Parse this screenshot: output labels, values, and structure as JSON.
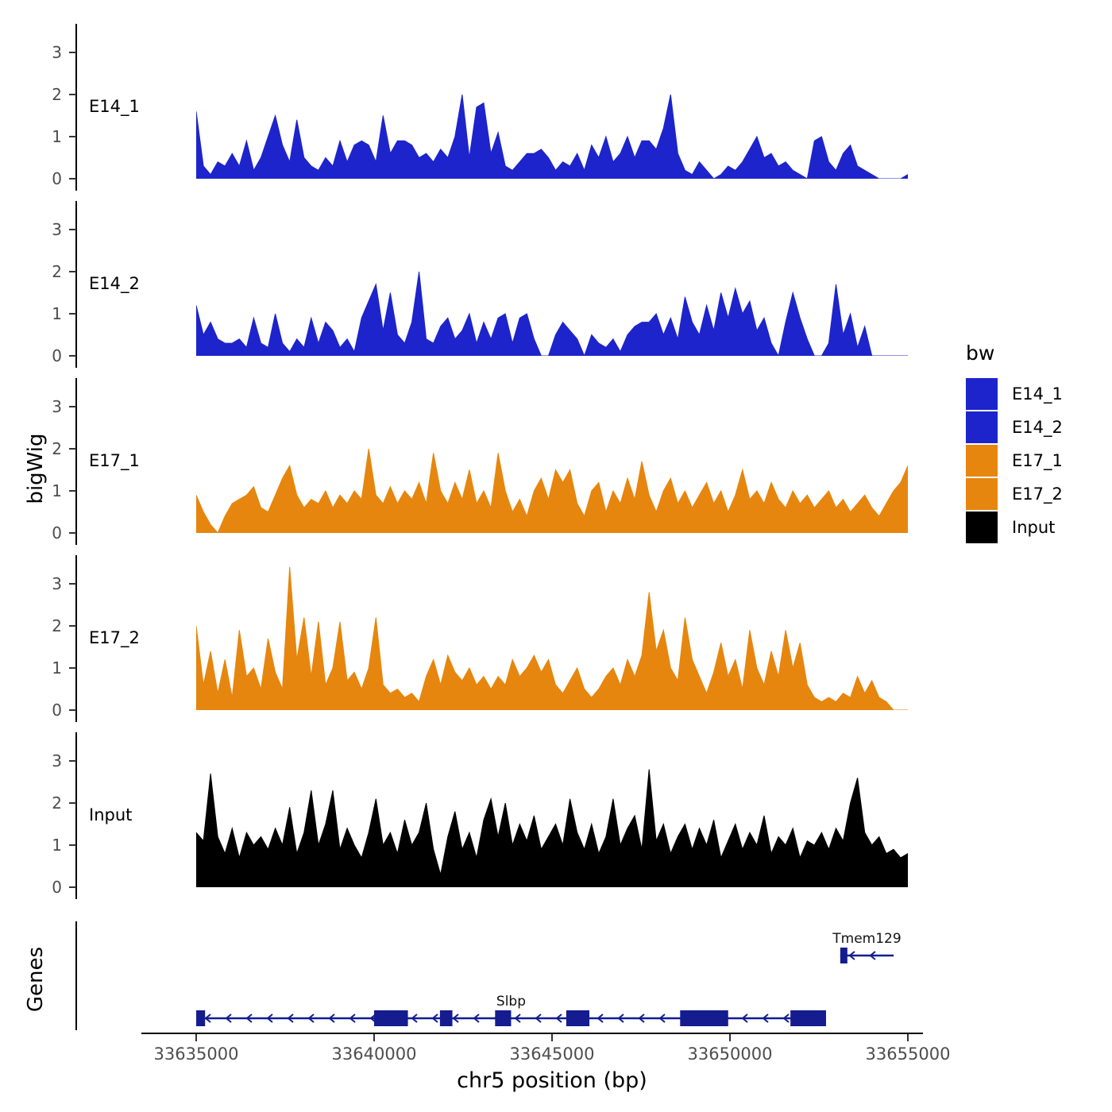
{
  "chart_data": {
    "type": "area",
    "title": "",
    "xlabel": "chr5 position (bp)",
    "ylabel": "bigWig",
    "genes_label": "Genes",
    "x_start": 33635000,
    "x_step": 200,
    "x_range": [
      33635000,
      33654800
    ],
    "x_ticks": [
      33635000,
      33640000,
      33645000,
      33650000,
      33655000
    ],
    "y_ticks": [
      0,
      1,
      2,
      3
    ],
    "ylim": [
      0,
      3.5
    ],
    "grid": false,
    "legend": {
      "title": "bw",
      "position": "right",
      "entries": [
        {
          "label": "E14_1",
          "color": "#1d24cb"
        },
        {
          "label": "E14_2",
          "color": "#1d24cb"
        },
        {
          "label": "E17_1",
          "color": "#e6860f"
        },
        {
          "label": "E17_2",
          "color": "#e6860f"
        },
        {
          "label": "Input",
          "color": "#000000"
        }
      ]
    },
    "tracks": [
      {
        "name": "E14_1",
        "color": "#1d24cb",
        "values": [
          1.6,
          0.3,
          0.1,
          0.4,
          0.3,
          0.6,
          0.3,
          0.9,
          0.2,
          0.5,
          1.0,
          1.5,
          0.8,
          0.4,
          1.4,
          0.5,
          0.3,
          0.2,
          0.5,
          0.3,
          0.9,
          0.4,
          0.8,
          0.9,
          0.8,
          0.4,
          1.5,
          0.6,
          0.9,
          0.9,
          0.8,
          0.5,
          0.6,
          0.4,
          0.7,
          0.5,
          1.0,
          2.0,
          0.5,
          1.7,
          1.8,
          0.6,
          1.1,
          0.3,
          0.2,
          0.4,
          0.6,
          0.6,
          0.7,
          0.5,
          0.2,
          0.4,
          0.3,
          0.6,
          0.2,
          0.8,
          0.5,
          1.0,
          0.4,
          0.6,
          1.0,
          0.5,
          0.9,
          0.9,
          0.7,
          1.2,
          2.0,
          0.6,
          0.2,
          0.1,
          0.4,
          0.2,
          0.0,
          0.1,
          0.3,
          0.2,
          0.4,
          0.7,
          1.0,
          0.5,
          0.6,
          0.3,
          0.4,
          0.2,
          0.1,
          0.0,
          0.9,
          1.0,
          0.4,
          0.2,
          0.6,
          0.8,
          0.3,
          0.2,
          0.1,
          0.0,
          0.0,
          0.0,
          0.0,
          0.1
        ]
      },
      {
        "name": "E14_2",
        "color": "#1d24cb",
        "values": [
          1.2,
          0.5,
          0.8,
          0.4,
          0.3,
          0.3,
          0.4,
          0.2,
          0.9,
          0.3,
          0.2,
          1.0,
          0.3,
          0.1,
          0.4,
          0.2,
          0.9,
          0.3,
          0.8,
          0.6,
          0.2,
          0.4,
          0.1,
          0.9,
          1.3,
          1.7,
          0.6,
          1.5,
          0.5,
          0.3,
          0.8,
          2.0,
          0.4,
          0.3,
          0.7,
          0.9,
          0.4,
          0.6,
          1.0,
          0.3,
          0.8,
          0.4,
          0.9,
          1.0,
          0.3,
          0.9,
          1.0,
          0.4,
          0.0,
          0.0,
          0.5,
          0.8,
          0.6,
          0.4,
          0.0,
          0.5,
          0.3,
          0.2,
          0.4,
          0.1,
          0.5,
          0.7,
          0.8,
          0.8,
          1.0,
          0.5,
          0.9,
          0.4,
          1.4,
          0.8,
          0.5,
          1.2,
          0.6,
          1.5,
          0.9,
          1.6,
          1.0,
          1.3,
          0.6,
          0.9,
          0.3,
          0.0,
          0.8,
          1.5,
          0.9,
          0.4,
          0.0,
          0.0,
          0.3,
          1.7,
          0.5,
          1.0,
          0.2,
          0.7,
          0.0,
          0.0,
          0.0,
          0.0,
          0.0,
          0.0
        ]
      },
      {
        "name": "E17_1",
        "color": "#e6860f",
        "values": [
          0.9,
          0.5,
          0.2,
          0.0,
          0.4,
          0.7,
          0.8,
          0.9,
          1.1,
          0.6,
          0.5,
          0.9,
          1.3,
          1.6,
          0.9,
          0.6,
          0.8,
          0.7,
          1.0,
          0.6,
          0.9,
          0.7,
          1.0,
          0.8,
          2.0,
          0.9,
          0.7,
          1.1,
          0.7,
          1.0,
          0.8,
          1.2,
          0.7,
          1.9,
          1.0,
          0.7,
          1.2,
          0.8,
          1.5,
          0.7,
          1.0,
          0.6,
          1.9,
          1.0,
          0.5,
          0.8,
          0.4,
          1.0,
          1.3,
          0.8,
          1.5,
          1.2,
          1.5,
          0.7,
          0.4,
          1.0,
          1.2,
          0.5,
          1.0,
          0.7,
          1.3,
          0.8,
          1.7,
          0.9,
          0.5,
          1.0,
          1.3,
          0.7,
          1.0,
          0.6,
          0.9,
          1.2,
          0.7,
          1.0,
          0.5,
          0.9,
          1.5,
          0.8,
          1.0,
          0.7,
          1.2,
          0.8,
          0.6,
          1.0,
          0.7,
          0.9,
          0.6,
          0.8,
          1.0,
          0.6,
          0.8,
          0.5,
          0.7,
          0.9,
          0.6,
          0.4,
          0.7,
          1.0,
          1.2,
          1.6
        ]
      },
      {
        "name": "E17_2",
        "color": "#e6860f",
        "values": [
          2.0,
          0.6,
          1.4,
          0.4,
          1.2,
          0.3,
          1.9,
          0.8,
          1.0,
          0.5,
          1.7,
          0.9,
          0.5,
          3.4,
          1.2,
          2.2,
          0.8,
          2.1,
          0.6,
          1.0,
          2.1,
          0.7,
          0.9,
          0.5,
          1.0,
          2.2,
          0.6,
          0.4,
          0.5,
          0.3,
          0.4,
          0.2,
          0.8,
          1.2,
          0.6,
          1.3,
          0.9,
          0.7,
          1.0,
          0.6,
          0.8,
          0.5,
          0.8,
          0.6,
          1.2,
          0.8,
          1.0,
          1.3,
          0.9,
          1.2,
          0.6,
          0.4,
          0.7,
          1.0,
          0.5,
          0.3,
          0.5,
          0.8,
          1.0,
          0.6,
          1.2,
          0.8,
          1.3,
          2.8,
          1.4,
          1.9,
          1.0,
          0.7,
          2.2,
          1.2,
          0.8,
          0.4,
          0.9,
          1.6,
          0.8,
          1.2,
          0.5,
          1.9,
          1.0,
          0.6,
          1.4,
          0.8,
          1.9,
          1.0,
          1.6,
          0.6,
          0.3,
          0.2,
          0.3,
          0.2,
          0.4,
          0.3,
          0.8,
          0.4,
          0.7,
          0.3,
          0.2,
          0.0,
          0.0,
          0.0
        ]
      },
      {
        "name": "Input",
        "color": "#000000",
        "values": [
          1.3,
          1.1,
          2.7,
          1.2,
          0.8,
          1.4,
          0.7,
          1.3,
          1.0,
          1.2,
          0.9,
          1.4,
          1.0,
          1.9,
          0.8,
          1.3,
          2.3,
          1.0,
          1.5,
          2.3,
          0.9,
          1.4,
          1.0,
          0.7,
          1.3,
          2.1,
          1.0,
          1.3,
          0.8,
          1.6,
          1.0,
          1.3,
          2.0,
          0.9,
          0.3,
          1.2,
          1.8,
          0.9,
          1.3,
          0.7,
          1.6,
          2.1,
          1.2,
          2.0,
          1.0,
          1.5,
          1.1,
          1.7,
          0.9,
          1.2,
          1.5,
          1.0,
          2.1,
          1.3,
          0.9,
          1.5,
          0.8,
          1.2,
          2.1,
          1.0,
          1.4,
          1.7,
          0.9,
          2.8,
          1.1,
          1.5,
          0.8,
          1.2,
          1.5,
          0.9,
          1.4,
          1.0,
          1.6,
          0.7,
          1.1,
          1.5,
          0.9,
          1.3,
          1.0,
          1.7,
          0.8,
          1.2,
          1.0,
          1.4,
          0.7,
          1.1,
          1.0,
          1.3,
          0.9,
          1.4,
          1.1,
          2.0,
          2.6,
          1.3,
          1.0,
          1.2,
          0.8,
          0.9,
          0.7,
          0.8
        ]
      }
    ],
    "genes": {
      "track_label": "Genes",
      "gene_color": "#141c8f",
      "items": [
        {
          "name": "Tmem129",
          "strand": "-",
          "row": 0,
          "start": 33653100,
          "end": 33654600,
          "exons": [
            [
              33653100,
              33653300
            ]
          ]
        },
        {
          "name": "Slbp",
          "strand": "-",
          "row": 1,
          "start": 33635000,
          "end": 33652700,
          "exons": [
            [
              33635000,
              33635250
            ],
            [
              33640000,
              33640950
            ],
            [
              33641850,
              33642200
            ],
            [
              33643400,
              33643850
            ],
            [
              33645400,
              33646050
            ],
            [
              33648600,
              33649950
            ],
            [
              33651700,
              33652700
            ]
          ]
        }
      ]
    }
  }
}
